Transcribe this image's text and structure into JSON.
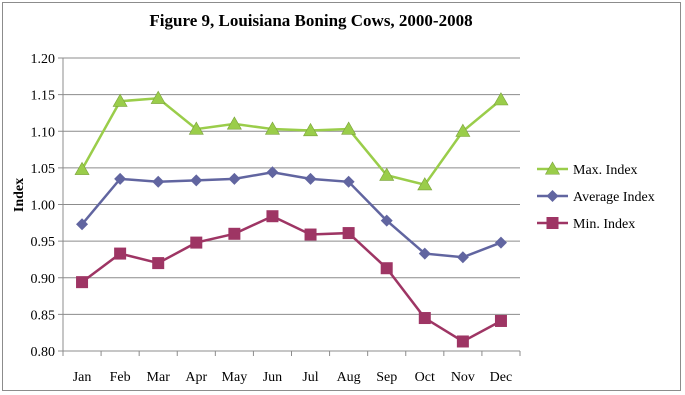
{
  "chart_data": {
    "type": "line",
    "title": "Figure 9, Louisiana Boning Cows, 2000-2008",
    "xlabel": "",
    "ylabel": "Index",
    "categories": [
      "Jan",
      "Feb",
      "Mar",
      "Apr",
      "May",
      "Jun",
      "Jul",
      "Aug",
      "Sep",
      "Oct",
      "Nov",
      "Dec"
    ],
    "ylim": [
      0.8,
      1.2
    ],
    "yticks": [
      "0.80",
      "0.85",
      "0.90",
      "0.95",
      "1.00",
      "1.05",
      "1.10",
      "1.15",
      "1.20"
    ],
    "grid": true,
    "legend_position": "right",
    "series": [
      {
        "name": "Max. Index",
        "color": "#9acd4a",
        "marker": "triangle",
        "values": [
          1.048,
          1.141,
          1.145,
          1.103,
          1.11,
          1.103,
          1.101,
          1.103,
          1.04,
          1.027,
          1.1,
          1.143
        ]
      },
      {
        "name": "Average Index",
        "color": "#6165a0",
        "marker": "diamond",
        "values": [
          0.973,
          1.035,
          1.031,
          1.033,
          1.035,
          1.044,
          1.035,
          1.031,
          0.978,
          0.933,
          0.928,
          0.948
        ]
      },
      {
        "name": "Min. Index",
        "color": "#9e3564",
        "marker": "square",
        "values": [
          0.894,
          0.933,
          0.92,
          0.948,
          0.96,
          0.984,
          0.959,
          0.961,
          0.913,
          0.845,
          0.813,
          0.841
        ]
      }
    ]
  }
}
